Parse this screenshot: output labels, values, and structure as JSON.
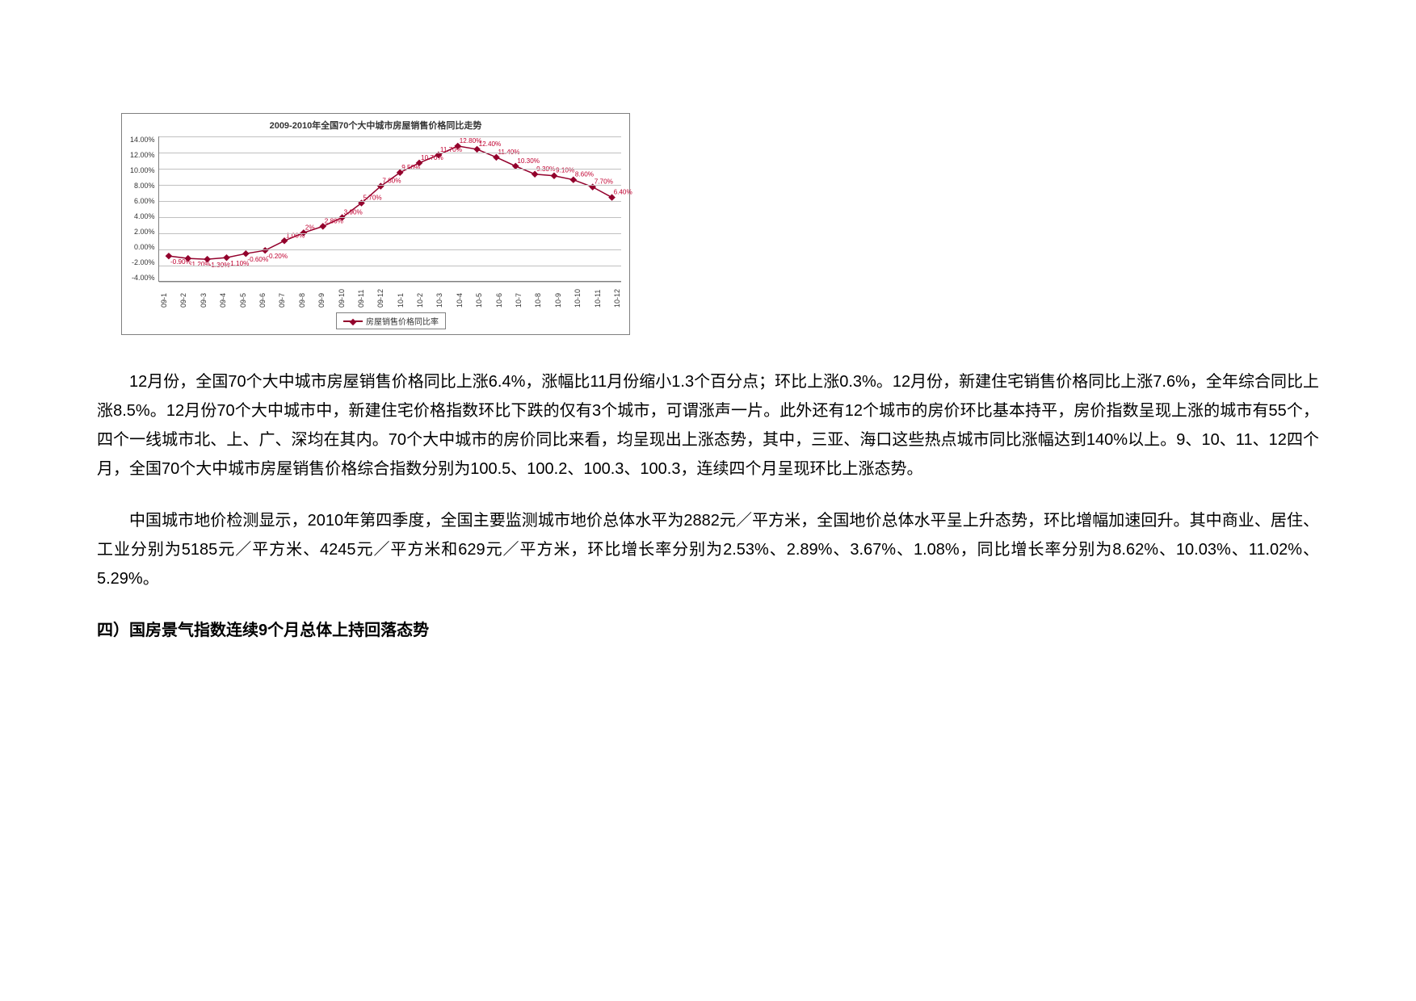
{
  "chart": {
    "type": "line",
    "title": "2009-2010年全国70个大中城市房屋销售价格同比走势",
    "ylim": [
      -4.0,
      14.0
    ],
    "ytick_step": 2.0,
    "yticks": [
      "14.00%",
      "12.00%",
      "10.00%",
      "8.00%",
      "6.00%",
      "4.00%",
      "2.00%",
      "0.00%",
      "-2.00%",
      "-4.00%"
    ],
    "categories": [
      "09-1",
      "09-2",
      "09-3",
      "09-4",
      "09-5",
      "09-6",
      "09-7",
      "09-8",
      "09-9",
      "09-10",
      "09-11",
      "09-12",
      "10-1",
      "10-2",
      "10-3",
      "10-4",
      "10-5",
      "10-6",
      "10-7",
      "10-8",
      "10-9",
      "10-10",
      "10-11",
      "10-12"
    ],
    "values": [
      -0.9,
      -1.2,
      -1.3,
      -1.1,
      -0.6,
      -0.2,
      1.0,
      2.0,
      2.8,
      3.9,
      5.7,
      7.8,
      9.5,
      10.7,
      11.7,
      12.8,
      12.4,
      11.4,
      10.3,
      9.3,
      9.1,
      8.6,
      7.7,
      6.4
    ],
    "value_labels": [
      "-0.90%",
      "-1.20%",
      "-1.30%",
      "-1.10%",
      "-0.60%",
      "-0.20%",
      "1.00%",
      "2%",
      "2.80%",
      "3.90%",
      "5.70%",
      "7.80%",
      "9.50%",
      "10.70%",
      "11.70%",
      "12.80%",
      "12.40%",
      "11.40%",
      "10.30%",
      "9.30%",
      "9.10%",
      "8.60%",
      "7.70%",
      "6.40%"
    ],
    "line_color": "#93002c",
    "marker_color": "#93002c",
    "grid_color": "#c0c0c0",
    "axis_color": "#808080",
    "background_color": "#ffffff",
    "legend_label": "房屋销售价格同比率",
    "title_fontsize": 11,
    "tick_fontsize": 9,
    "label_fontsize": 8
  },
  "paragraph1": "12月份，全国70个大中城市房屋销售价格同比上涨6.4%，涨幅比11月份缩小1.3个百分点；环比上涨0.3%。12月份，新建住宅销售价格同比上涨7.6%，全年综合同比上涨8.5%。12月份70个大中城市中，新建住宅价格指数环比下跌的仅有3个城市，可谓涨声一片。此外还有12个城市的房价环比基本持平，房价指数呈现上涨的城市有55个，四个一线城市北、上、广、深均在其内。70个大中城市的房价同比来看，均呈现出上涨态势，其中，三亚、海口这些热点城市同比涨幅达到140%以上。9、10、11、12四个月，全国70个大中城市房屋销售价格综合指数分别为100.5、100.2、100.3、100.3，连续四个月呈现环比上涨态势。",
  "paragraph2": "中国城市地价检测显示，2010年第四季度，全国主要监测城市地价总体水平为2882元／平方米，全国地价总体水平呈上升态势，环比增幅加速回升。其中商业、居住、工业分别为5185元／平方米、4245元／平方米和629元／平方米，环比增长率分别为2.53%、2.89%、3.67%、1.08%，同比增长率分别为8.62%、10.03%、11.02%、5.29%。",
  "heading": "四）国房景气指数连续9个月总体上持回落态势"
}
